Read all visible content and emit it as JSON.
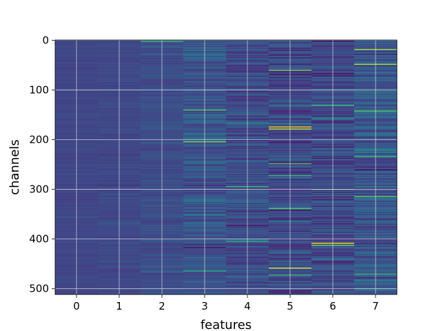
{
  "chart_data": {
    "type": "heatmap",
    "title": "",
    "xlabel": "features",
    "ylabel": "channels",
    "x_categories": [
      0,
      1,
      2,
      3,
      4,
      5,
      6,
      7
    ],
    "x_tick_labels": [
      "0",
      "1",
      "2",
      "3",
      "4",
      "5",
      "6",
      "7"
    ],
    "y_tick_labels": [
      "0",
      "100",
      "200",
      "300",
      "400",
      "500"
    ],
    "y_ticks": [
      0,
      100,
      200,
      300,
      400,
      500
    ],
    "ylim": [
      511.5,
      -0.5
    ],
    "xlim": [
      -0.5,
      7.5
    ],
    "n_channels": 512,
    "n_features": 8,
    "colormap": "viridis",
    "grid": true,
    "grid_color": "#dddddd",
    "column_mean_intensity": [
      0.26,
      0.27,
      0.29,
      0.33,
      0.28,
      0.26,
      0.27,
      0.33
    ],
    "column_spread": [
      0.03,
      0.04,
      0.06,
      0.12,
      0.12,
      0.14,
      0.13,
      0.14
    ],
    "highlights": [
      {
        "feature": 2,
        "channel": 2,
        "value": 0.75
      },
      {
        "feature": 3,
        "channel": 140,
        "value": 0.8
      },
      {
        "feature": 3,
        "channel": 205,
        "value": 0.85
      },
      {
        "feature": 3,
        "channel": 465,
        "value": 0.7
      },
      {
        "feature": 4,
        "channel": 295,
        "value": 0.75
      },
      {
        "feature": 4,
        "channel": 405,
        "value": 0.7
      },
      {
        "feature": 5,
        "channel": 60,
        "value": 0.85
      },
      {
        "feature": 5,
        "channel": 175,
        "value": 0.98
      },
      {
        "feature": 5,
        "channel": 178,
        "value": 0.95
      },
      {
        "feature": 5,
        "channel": 248,
        "value": 0.8
      },
      {
        "feature": 5,
        "channel": 272,
        "value": 0.75
      },
      {
        "feature": 5,
        "channel": 338,
        "value": 0.8
      },
      {
        "feature": 5,
        "channel": 458,
        "value": 0.95
      },
      {
        "feature": 5,
        "channel": 472,
        "value": 0.75
      },
      {
        "feature": 6,
        "channel": 130,
        "value": 0.75
      },
      {
        "feature": 6,
        "channel": 300,
        "value": 0.75
      },
      {
        "feature": 6,
        "channel": 408,
        "value": 0.97
      },
      {
        "feature": 6,
        "channel": 412,
        "value": 0.85
      },
      {
        "feature": 7,
        "channel": 18,
        "value": 0.9
      },
      {
        "feature": 7,
        "channel": 48,
        "value": 0.9
      },
      {
        "feature": 7,
        "channel": 142,
        "value": 0.8
      },
      {
        "feature": 7,
        "channel": 235,
        "value": 0.75
      },
      {
        "feature": 7,
        "channel": 315,
        "value": 0.8
      },
      {
        "feature": 7,
        "channel": 470,
        "value": 0.75
      }
    ]
  }
}
